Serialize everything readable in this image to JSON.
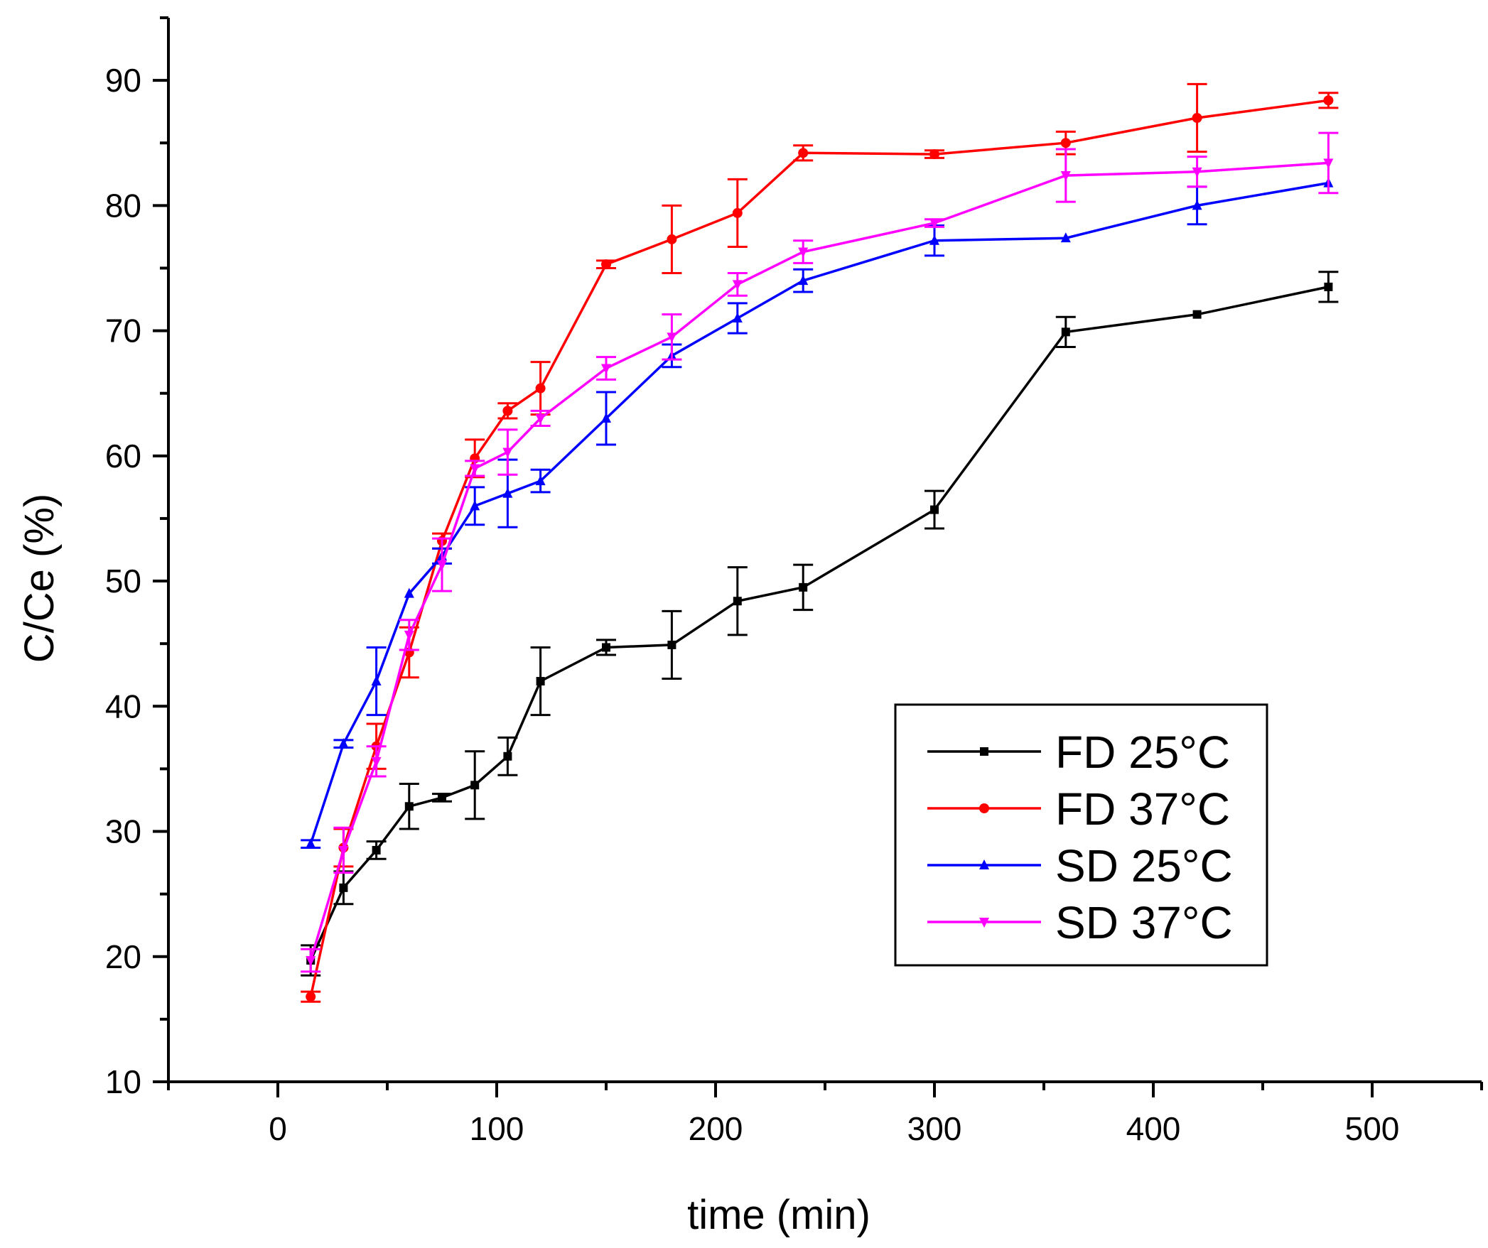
{
  "chart_data": {
    "type": "line",
    "title": "",
    "xlabel": "time (min)",
    "ylabel": "C/Ce (%)",
    "xlim": [
      -50,
      550
    ],
    "ylim": [
      10,
      95
    ],
    "xticks": [
      0,
      100,
      200,
      300,
      400,
      500
    ],
    "xtick_labels": [
      "0",
      "100",
      "200",
      "300",
      "400",
      "500"
    ],
    "xminor_ticks": [
      -50,
      50,
      150,
      250,
      350,
      450,
      550
    ],
    "yticks": [
      10,
      20,
      30,
      40,
      50,
      60,
      70,
      80,
      90
    ],
    "ytick_labels": [
      "10",
      "20",
      "30",
      "40",
      "50",
      "60",
      "70",
      "80",
      "90"
    ],
    "yminor_ticks": [
      15,
      25,
      35,
      45,
      55,
      65,
      75,
      85,
      95
    ],
    "grid": false,
    "legend": {
      "position": "bottom-right",
      "entries": [
        "FD 25°C",
        "FD 37°C",
        "SD 25°C",
        "SD 37°C"
      ]
    },
    "series": [
      {
        "name": "FD 25°C",
        "color": "#000000",
        "marker": "square",
        "x": [
          15,
          30,
          45,
          60,
          75,
          90,
          105,
          120,
          150,
          180,
          210,
          240,
          300,
          360,
          420,
          480
        ],
        "y": [
          19.7,
          25.5,
          28.5,
          32.0,
          32.7,
          33.7,
          36.0,
          42.0,
          44.7,
          44.9,
          48.4,
          49.5,
          55.7,
          69.9,
          71.3,
          73.5
        ],
        "err": [
          1.2,
          1.3,
          0.7,
          1.8,
          0.3,
          2.7,
          1.5,
          2.7,
          0.6,
          2.7,
          2.7,
          1.8,
          1.5,
          1.2,
          0,
          1.2
        ]
      },
      {
        "name": "FD 37°C",
        "color": "#ff0000",
        "marker": "circle",
        "x": [
          15,
          30,
          45,
          60,
          75,
          90,
          105,
          120,
          150,
          180,
          210,
          240,
          300,
          360,
          420,
          480
        ],
        "y": [
          16.8,
          28.7,
          36.8,
          44.3,
          53.2,
          59.8,
          63.6,
          65.4,
          75.3,
          77.3,
          79.4,
          84.2,
          84.1,
          85.0,
          87.0,
          88.4
        ],
        "err": [
          0.4,
          1.5,
          1.8,
          2.0,
          0.6,
          1.5,
          0.6,
          2.1,
          0.3,
          2.7,
          2.7,
          0.6,
          0.3,
          0.9,
          2.7,
          0.6
        ]
      },
      {
        "name": "SD 25°C",
        "color": "#0000ff",
        "marker": "triangle-up",
        "x": [
          15,
          30,
          45,
          60,
          75,
          90,
          105,
          120,
          150,
          180,
          210,
          240,
          300,
          360,
          420,
          480
        ],
        "y": [
          29.0,
          37.0,
          42.0,
          49.0,
          52.0,
          56.0,
          57.0,
          58.0,
          63.0,
          68.0,
          71.0,
          74.0,
          77.2,
          77.4,
          80.0,
          81.8
        ],
        "err": [
          0.3,
          0.3,
          2.7,
          0,
          0.6,
          1.5,
          2.7,
          0.9,
          2.1,
          0.9,
          1.2,
          0.9,
          1.2,
          0,
          1.5,
          0
        ]
      },
      {
        "name": "SD 37°C",
        "color": "#ff00ff",
        "marker": "triangle-down",
        "x": [
          15,
          30,
          45,
          60,
          75,
          90,
          105,
          120,
          150,
          180,
          210,
          240,
          300,
          360,
          420,
          480
        ],
        "y": [
          19.7,
          28.5,
          35.6,
          45.7,
          51.3,
          59.0,
          60.3,
          63.0,
          67.0,
          69.5,
          73.7,
          76.3,
          78.6,
          82.4,
          82.7,
          83.4
        ],
        "err": [
          0.9,
          1.8,
          1.2,
          1.2,
          2.1,
          0.6,
          1.8,
          0.6,
          0.9,
          1.8,
          0.9,
          0.9,
          0.3,
          2.1,
          1.2,
          2.4
        ]
      }
    ]
  }
}
